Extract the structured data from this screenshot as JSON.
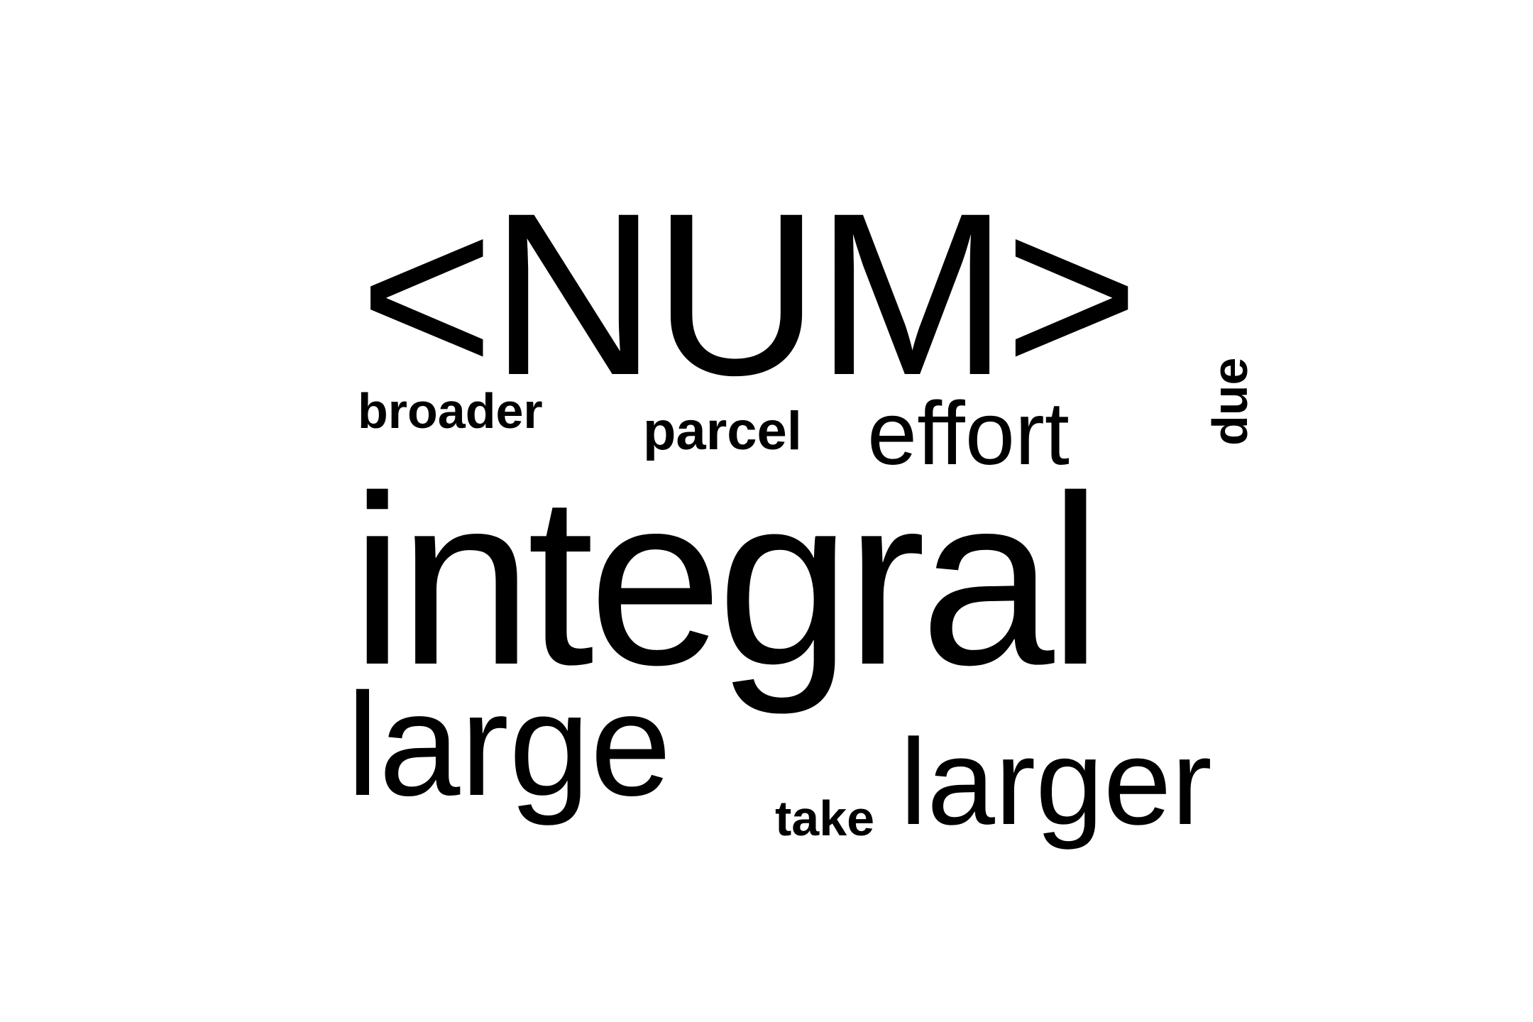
{
  "words": [
    {
      "text": "<NUM>"
    },
    {
      "text": "broader"
    },
    {
      "text": "parcel"
    },
    {
      "text": "effort"
    },
    {
      "text": "due"
    },
    {
      "text": "integral"
    },
    {
      "text": "large"
    },
    {
      "text": "take"
    },
    {
      "text": "larger"
    }
  ],
  "colors": {
    "background": "#ffffff",
    "text": "#000000"
  }
}
